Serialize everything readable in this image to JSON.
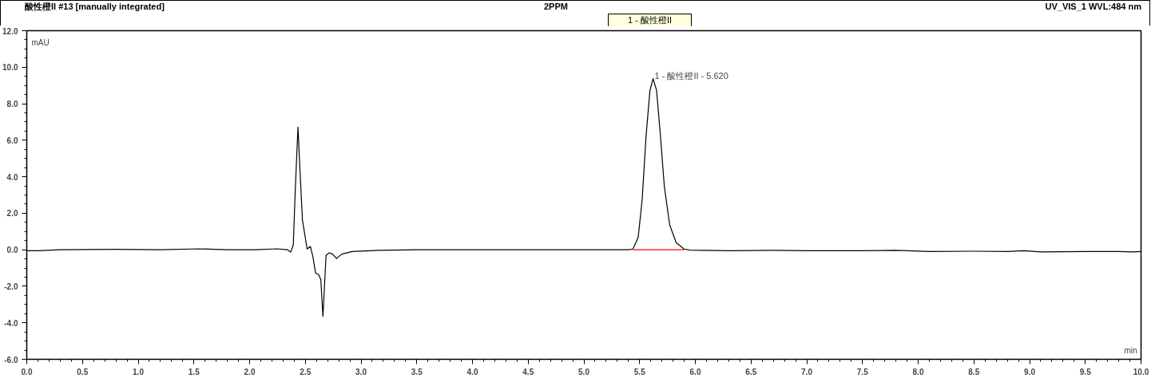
{
  "chart_data": {
    "type": "line",
    "title": "酸性橙II #13 [manually integrated]",
    "subtitle": "2PPM",
    "xlabel": "min",
    "ylabel": "mAU",
    "annotations": [
      "UV_VIS_1 WVL:484 nm",
      "1 - 酸性橙II",
      {
        "text": "1 - 酸性橙II - 5.620",
        "x": 5.62,
        "y": 9.37
      }
    ],
    "series": [
      {
        "color": "#000000",
        "x": [
          0.0,
          0.1,
          0.3,
          0.8,
          1.2,
          1.55,
          1.8,
          2.05,
          2.25,
          2.34,
          2.368,
          2.392,
          2.41,
          2.434,
          2.455,
          2.474,
          2.516,
          2.545,
          2.568,
          2.592,
          2.618,
          2.639,
          2.658,
          2.686,
          2.714,
          2.745,
          2.78,
          2.827,
          2.92,
          3.16,
          3.5,
          4.0,
          4.5,
          5.0,
          5.4,
          5.44,
          5.487,
          5.523,
          5.558,
          5.593,
          5.621,
          5.652,
          5.687,
          5.722,
          5.77,
          5.828,
          5.899,
          5.95,
          6.3,
          6.7,
          7.0,
          7.5,
          7.8,
          8.1,
          8.5,
          8.8,
          8.95,
          9.1,
          9.5,
          9.8,
          9.93,
          10.0
        ],
        "values": [
          -0.05,
          -0.05,
          0.0,
          0.02,
          0.0,
          0.05,
          0.0,
          0.0,
          0.05,
          0.0,
          -0.13,
          0.26,
          3.3,
          6.72,
          4.0,
          1.64,
          0.04,
          0.18,
          -0.38,
          -1.28,
          -1.35,
          -1.63,
          -3.65,
          -0.31,
          -0.17,
          -0.24,
          -0.48,
          -0.24,
          -0.1,
          -0.03,
          0.0,
          0.0,
          0.0,
          0.0,
          0.0,
          0.04,
          0.67,
          2.76,
          6.24,
          8.74,
          9.37,
          8.74,
          6.24,
          3.45,
          1.36,
          0.39,
          0.04,
          -0.02,
          -0.05,
          -0.03,
          -0.05,
          -0.05,
          -0.03,
          -0.1,
          -0.08,
          -0.1,
          -0.05,
          -0.12,
          -0.1,
          -0.1,
          -0.12,
          -0.1
        ]
      },
      {
        "color": "#ff0000",
        "x": [
          5.44,
          5.9
        ],
        "values": [
          0.0,
          0.0
        ]
      }
    ],
    "xlim": [
      0.0,
      10.0
    ],
    "ylim": [
      -6.0,
      12.0
    ],
    "xticks": [
      {
        "value": 0,
        "label": "0.0"
      },
      {
        "value": 0.5,
        "label": "0.5"
      },
      {
        "value": 1,
        "label": "1.0"
      },
      {
        "value": 1.5,
        "label": "1.5"
      },
      {
        "value": 2,
        "label": "2.0"
      },
      {
        "value": 2.5,
        "label": "2.5"
      },
      {
        "value": 3,
        "label": "3.0"
      },
      {
        "value": 3.5,
        "label": "3.5"
      },
      {
        "value": 4,
        "label": "4.0"
      },
      {
        "value": 4.5,
        "label": "4.5"
      },
      {
        "value": 5,
        "label": "5.0"
      },
      {
        "value": 5.5,
        "label": "5.5"
      },
      {
        "value": 6,
        "label": "6.0"
      },
      {
        "value": 6.5,
        "label": "6.5"
      },
      {
        "value": 7,
        "label": "7.0"
      },
      {
        "value": 7.5,
        "label": "7.5"
      },
      {
        "value": 8,
        "label": "8.0"
      },
      {
        "value": 8.5,
        "label": "8.5"
      },
      {
        "value": 9,
        "label": "9.0"
      },
      {
        "value": 9.5,
        "label": "9.5"
      },
      {
        "value": 10,
        "label": "10.0"
      }
    ],
    "yticks": [
      {
        "value": -6,
        "label": "-6.0"
      },
      {
        "value": -4,
        "label": "-4.0"
      },
      {
        "value": -2,
        "label": "-2.0"
      },
      {
        "value": 0,
        "label": "0.0"
      },
      {
        "value": 2,
        "label": "2.0"
      },
      {
        "value": 4,
        "label": "4.0"
      },
      {
        "value": 6,
        "label": "6.0"
      },
      {
        "value": 8,
        "label": "8.0"
      },
      {
        "value": 10,
        "label": "10.0"
      },
      {
        "value": 12,
        "label": "12.0"
      }
    ],
    "grid": false
  }
}
